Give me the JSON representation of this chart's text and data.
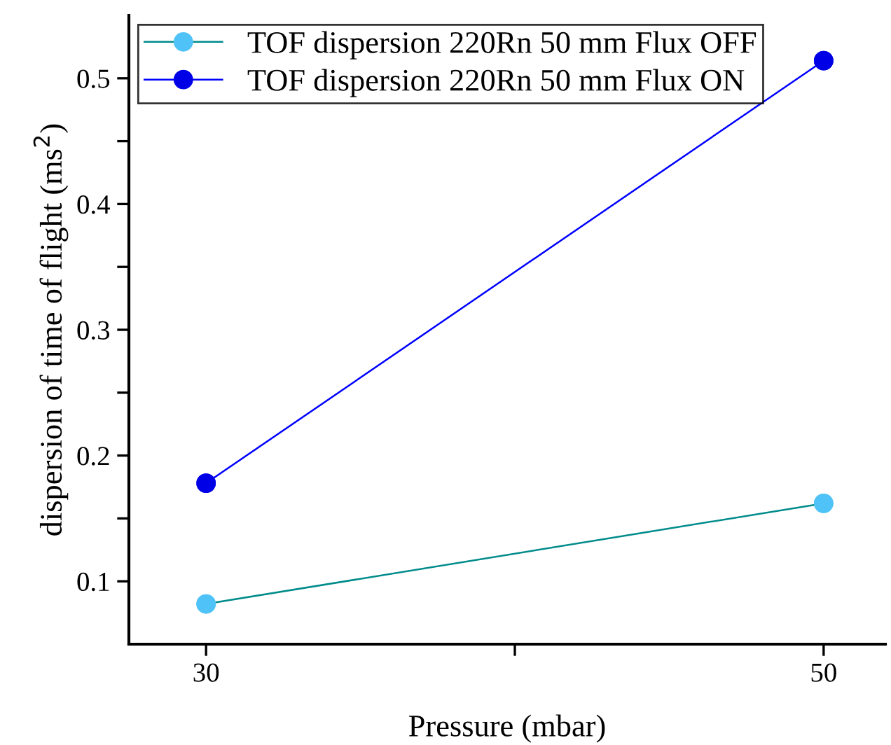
{
  "chart_data": {
    "type": "line",
    "xlabel": "Pressure (mbar)",
    "ylabel": "dispersion of time of flight (ms$^{2}$)",
    "x": [
      30,
      50
    ],
    "series": [
      {
        "name": "TOF dispersion 220Rn 50 mm Flux OFF",
        "color": "#008b8b",
        "colors": [
          "#4fc3f7",
          "#4fc3f7"
        ],
        "values": [
          0.082,
          0.162
        ]
      },
      {
        "name": "TOF dispersion 220Rn 50 mm Flux ON",
        "color": "#0000ff",
        "colors": [
          "#0000e6",
          "#0000e6"
        ],
        "values": [
          0.178,
          0.514
        ]
      }
    ],
    "xlim": [
      27.5,
      52
    ],
    "xticks": [
      30,
      {
        "value": 40,
        "label": null
      },
      50
    ],
    "ylim": [
      0.05,
      0.55
    ],
    "yticks": [
      0.1,
      {
        "value": 0.15,
        "label": null
      },
      0.2,
      {
        "value": 0.25,
        "label": null
      },
      0.3,
      {
        "value": 0.35,
        "label": null
      },
      0.4,
      {
        "value": 0.45,
        "label": null
      },
      0.5
    ],
    "legend": "top left",
    "marker": "circle",
    "line_style": "solid",
    "grid": false
  }
}
